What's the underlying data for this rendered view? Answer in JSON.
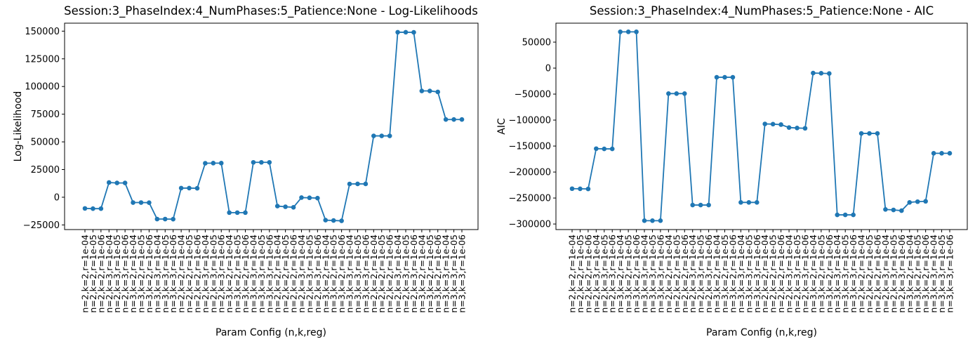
{
  "figure": {
    "background": "#ffffff",
    "line_color": "#1f77b4",
    "text_color": "#000000"
  },
  "chart_data": [
    {
      "type": "line",
      "title": "Session:3_PhaseIndex:4_NumPhases:5_Patience:None - Log-Likelihoods",
      "ylabel": "Log-Likelihood",
      "xlabel": "Param Config (n,k,reg)",
      "legend": "none",
      "grid": false,
      "marker": "circle",
      "yticks": [
        150000,
        125000,
        100000,
        75000,
        50000,
        25000,
        0,
        -25000
      ],
      "ylim": [
        -29200,
        157200
      ],
      "categories": [
        "n=2,k=2,r=1e-04",
        "n=2,k=2,r=1e-05",
        "n=2,k=2,r=1e-06",
        "n=2,k=3,r=1e-04",
        "n=2,k=3,r=1e-05",
        "n=2,k=3,r=1e-06",
        "n=3,k=2,r=1e-04",
        "n=3,k=2,r=1e-05",
        "n=3,k=2,r=1e-06",
        "n=3,k=3,r=1e-04",
        "n=3,k=3,r=1e-05",
        "n=3,k=3,r=1e-06",
        "n=2,k=2,r=1e-04",
        "n=2,k=2,r=1e-05",
        "n=2,k=2,r=1e-06",
        "n=2,k=3,r=1e-04",
        "n=2,k=3,r=1e-05",
        "n=2,k=3,r=1e-06",
        "n=3,k=2,r=1e-04",
        "n=3,k=2,r=1e-05",
        "n=3,k=2,r=1e-06",
        "n=3,k=3,r=1e-04",
        "n=3,k=3,r=1e-05",
        "n=3,k=3,r=1e-06",
        "n=2,k=2,r=1e-04",
        "n=2,k=2,r=1e-05",
        "n=2,k=2,r=1e-06",
        "n=2,k=3,r=1e-04",
        "n=2,k=3,r=1e-05",
        "n=2,k=3,r=1e-06",
        "n=3,k=2,r=1e-04",
        "n=3,k=2,r=1e-05",
        "n=3,k=2,r=1e-06",
        "n=3,k=3,r=1e-04",
        "n=3,k=3,r=1e-05",
        "n=3,k=3,r=1e-06",
        "n=2,k=2,r=1e-04",
        "n=2,k=2,r=1e-05",
        "n=2,k=2,r=1e-06",
        "n=2,k=3,r=1e-04",
        "n=2,k=3,r=1e-05",
        "n=2,k=3,r=1e-06",
        "n=3,k=2,r=1e-04",
        "n=3,k=2,r=1e-05",
        "n=3,k=2,r=1e-06",
        "n=3,k=3,r=1e-04",
        "n=3,k=3,r=1e-05",
        "n=3,k=3,r=1e-06"
      ],
      "values": [
        -10100,
        -10300,
        -10300,
        13300,
        12900,
        12900,
        -4800,
        -4800,
        -4900,
        -19700,
        -19700,
        -19800,
        8250,
        8250,
        8100,
        30700,
        30800,
        30800,
        -13900,
        -13900,
        -13900,
        31500,
        31500,
        31500,
        -8000,
        -8600,
        -9100,
        -300,
        -500,
        -800,
        -20700,
        -21000,
        -21300,
        12000,
        12050,
        12050,
        55400,
        55400,
        55400,
        149000,
        149000,
        148900,
        96000,
        96000,
        95100,
        70200,
        70200,
        70200
      ]
    },
    {
      "type": "line",
      "title": "Session:3_PhaseIndex:4_NumPhases:5_Patience:None - AIC",
      "ylabel": "AIC",
      "xlabel": "Param Config (n,k,reg)",
      "legend": "none",
      "grid": false,
      "marker": "circle",
      "yticks": [
        50000,
        0,
        -50000,
        -100000,
        -150000,
        -200000,
        -250000,
        -300000
      ],
      "ylim": [
        -310700,
        86500
      ],
      "categories": [
        "n=2,k=2,r=1e-04",
        "n=2,k=2,r=1e-05",
        "n=2,k=2,r=1e-06",
        "n=2,k=3,r=1e-04",
        "n=2,k=3,r=1e-05",
        "n=2,k=3,r=1e-06",
        "n=3,k=2,r=1e-04",
        "n=3,k=2,r=1e-05",
        "n=3,k=2,r=1e-06",
        "n=3,k=3,r=1e-04",
        "n=3,k=3,r=1e-05",
        "n=3,k=3,r=1e-06",
        "n=2,k=2,r=1e-04",
        "n=2,k=2,r=1e-05",
        "n=2,k=2,r=1e-06",
        "n=2,k=3,r=1e-04",
        "n=2,k=3,r=1e-05",
        "n=2,k=3,r=1e-06",
        "n=3,k=2,r=1e-04",
        "n=3,k=2,r=1e-05",
        "n=3,k=2,r=1e-06",
        "n=3,k=3,r=1e-04",
        "n=3,k=3,r=1e-05",
        "n=3,k=3,r=1e-06",
        "n=2,k=2,r=1e-04",
        "n=2,k=2,r=1e-05",
        "n=2,k=2,r=1e-06",
        "n=2,k=3,r=1e-04",
        "n=2,k=3,r=1e-05",
        "n=2,k=3,r=1e-06",
        "n=3,k=2,r=1e-04",
        "n=3,k=2,r=1e-05",
        "n=3,k=2,r=1e-06",
        "n=3,k=3,r=1e-04",
        "n=3,k=3,r=1e-05",
        "n=3,k=3,r=1e-06",
        "n=2,k=2,r=1e-04",
        "n=2,k=2,r=1e-05",
        "n=2,k=2,r=1e-06",
        "n=2,k=3,r=1e-04",
        "n=2,k=3,r=1e-05",
        "n=2,k=3,r=1e-06",
        "n=3,k=2,r=1e-04",
        "n=3,k=2,r=1e-05",
        "n=3,k=2,r=1e-06",
        "n=3,k=3,r=1e-04",
        "n=3,k=3,r=1e-05",
        "n=3,k=3,r=1e-06"
      ],
      "values": [
        -232000,
        -232200,
        -232500,
        -155000,
        -155400,
        -155400,
        69800,
        69800,
        69800,
        -293600,
        -293600,
        -293600,
        -49000,
        -49000,
        -49000,
        -263500,
        -263500,
        -263500,
        -17600,
        -17600,
        -17600,
        -258400,
        -258400,
        -258400,
        -107400,
        -107800,
        -108700,
        -114400,
        -115200,
        -115800,
        -9500,
        -9900,
        -10400,
        -282400,
        -282400,
        -282400,
        -125700,
        -125700,
        -125700,
        -272000,
        -272900,
        -274300,
        -258400,
        -257000,
        -256300,
        -163900,
        -163900,
        -163900
      ]
    }
  ]
}
